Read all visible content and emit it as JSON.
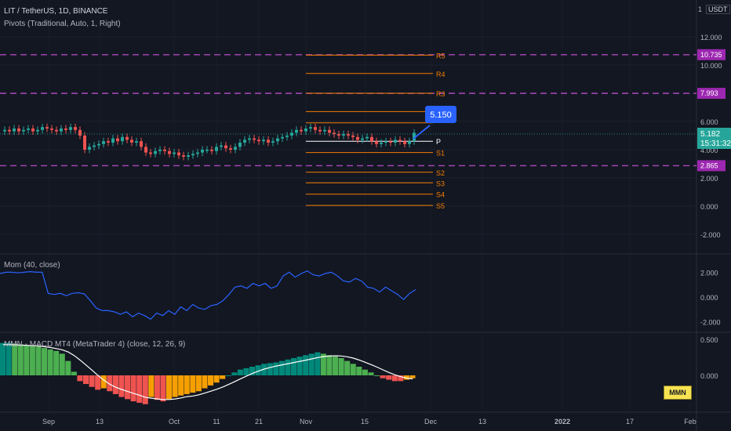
{
  "header": {
    "title": "LIT / TetherUS, 1D, BINANCE",
    "pivots": "Pivots (Traditional, Auto, 1, Right)",
    "currency": "USDT",
    "top_tick": "1"
  },
  "mom_title": "Mom (40, close)",
  "macd_title": "MMN - MACD MT4 (MetaTrader 4) (close, 12, 26, 9)",
  "macd_badge": "MMN",
  "price_axis": {
    "ticks": [
      "12.000",
      "10.000",
      "6.000",
      "4.000",
      "2.000",
      "0.000",
      "-2.000"
    ],
    "price_tag": "5.182",
    "countdown": "15:31:32"
  },
  "levels_dashed": [
    {
      "label": "10.735",
      "value": 10.735
    },
    {
      "label": "7.993",
      "value": 7.993
    },
    {
      "label": "2.865",
      "value": 2.865
    }
  ],
  "pivot_levels": [
    {
      "label": "R5",
      "value": 10.7
    },
    {
      "label": "R4",
      "value": 9.4
    },
    {
      "label": "R3",
      "value": 8.0
    },
    {
      "label": "",
      "value": 6.7
    },
    {
      "label": "",
      "value": 5.9
    },
    {
      "label": "P",
      "value": 4.6
    },
    {
      "label": "S1",
      "value": 3.8
    },
    {
      "label": "S2",
      "value": 2.4
    },
    {
      "label": "S3",
      "value": 1.65
    },
    {
      "label": "S4",
      "value": 0.85
    },
    {
      "label": "S5",
      "value": 0.05
    }
  ],
  "callout": "5.150",
  "mom_axis": {
    "ticks": [
      "2.000",
      "0.000",
      "-2.000"
    ]
  },
  "macd_axis": {
    "ticks": [
      "0.500",
      "0.000"
    ]
  },
  "time_axis": {
    "ticks": [
      "Sep",
      "13",
      "Oct",
      "11",
      "21",
      "Nov",
      "15",
      "Dec",
      "13",
      "2022",
      "17",
      "Feb"
    ]
  },
  "chart_data": {
    "type": "candlestick",
    "ohlc_close": [
      5.4,
      5.3,
      5.5,
      5.3,
      5.4,
      5.5,
      5.3,
      5.4,
      5.6,
      5.5,
      5.4,
      5.3,
      5.5,
      5.4,
      5.6,
      5.4,
      5.0,
      4.0,
      4.2,
      4.3,
      4.4,
      4.6,
      4.5,
      4.8,
      4.6,
      4.9,
      4.7,
      4.5,
      4.6,
      4.2,
      3.8,
      3.7,
      3.9,
      4.0,
      3.9,
      3.7,
      3.8,
      3.6,
      3.5,
      3.6,
      3.7,
      3.8,
      4.0,
      4.0,
      3.9,
      4.2,
      4.3,
      4.1,
      4.0,
      4.2,
      4.5,
      4.7,
      4.8,
      4.7,
      4.6,
      4.7,
      4.5,
      4.6,
      4.8,
      4.9,
      5.0,
      5.2,
      5.4,
      5.3,
      5.5,
      5.6,
      5.4,
      5.3,
      5.4,
      5.2,
      5.1,
      5.0,
      5.1,
      5.0,
      4.9,
      4.7,
      4.8,
      4.9,
      4.6,
      4.4,
      4.5,
      4.6,
      4.5,
      4.7,
      4.6,
      4.4,
      4.6,
      5.2
    ],
    "mom_values": [
      1.9,
      2.0,
      2.0,
      1.95,
      2.0,
      2.05,
      2.0,
      2.0,
      0.3,
      0.2,
      0.3,
      0.1,
      0.3,
      0.35,
      0.25,
      -0.3,
      -0.9,
      -1.1,
      -1.1,
      -1.2,
      -1.4,
      -1.2,
      -1.6,
      -1.3,
      -1.5,
      -1.8,
      -1.3,
      -1.5,
      -1.1,
      -1.4,
      -0.8,
      -1.1,
      -0.6,
      -0.9,
      -1.0,
      -0.7,
      -0.6,
      -0.3,
      0.2,
      0.8,
      0.9,
      0.7,
      1.1,
      0.9,
      1.1,
      0.7,
      0.9,
      1.7,
      2.0,
      1.6,
      1.9,
      2.1,
      1.8,
      1.7,
      1.9,
      2.0,
      1.7,
      1.3,
      1.2,
      1.5,
      1.3,
      0.8,
      0.7,
      0.4,
      0.8,
      0.5,
      0.2,
      -0.2,
      0.3,
      0.6
    ],
    "macd_hist": [
      0.45,
      0.45,
      0.44,
      0.43,
      0.42,
      0.41,
      0.4,
      0.38,
      0.36,
      0.34,
      0.3,
      0.2,
      0.05,
      -0.08,
      -0.12,
      -0.16,
      -0.2,
      -0.18,
      -0.22,
      -0.26,
      -0.3,
      -0.33,
      -0.36,
      -0.38,
      -0.4,
      -0.3,
      -0.34,
      -0.36,
      -0.33,
      -0.3,
      -0.28,
      -0.26,
      -0.24,
      -0.22,
      -0.18,
      -0.14,
      -0.1,
      -0.05,
      0.0,
      0.04,
      0.08,
      0.1,
      0.12,
      0.14,
      0.16,
      0.17,
      0.18,
      0.2,
      0.22,
      0.24,
      0.26,
      0.28,
      0.3,
      0.32,
      0.3,
      0.28,
      0.26,
      0.24,
      0.2,
      0.16,
      0.12,
      0.08,
      0.04,
      0.0,
      -0.04,
      -0.06,
      -0.08,
      -0.08,
      -0.06,
      -0.04
    ],
    "price_ylim": [
      -3,
      13
    ],
    "mom_ylim": [
      -2.6,
      2.6
    ],
    "macd_ylim": [
      -0.6,
      0.6
    ],
    "colors": {
      "up": "#26a69a",
      "down": "#ef5350",
      "mom_line": "#2962ff",
      "pivot": "#f57c00",
      "dashed": "#ab47bc",
      "signal": "#ffffff",
      "hist_up_light": "#4caf50",
      "hist_up_dark": "#00897b",
      "hist_down_red": "#ef5350",
      "hist_down_orange": "#f59f00"
    }
  }
}
